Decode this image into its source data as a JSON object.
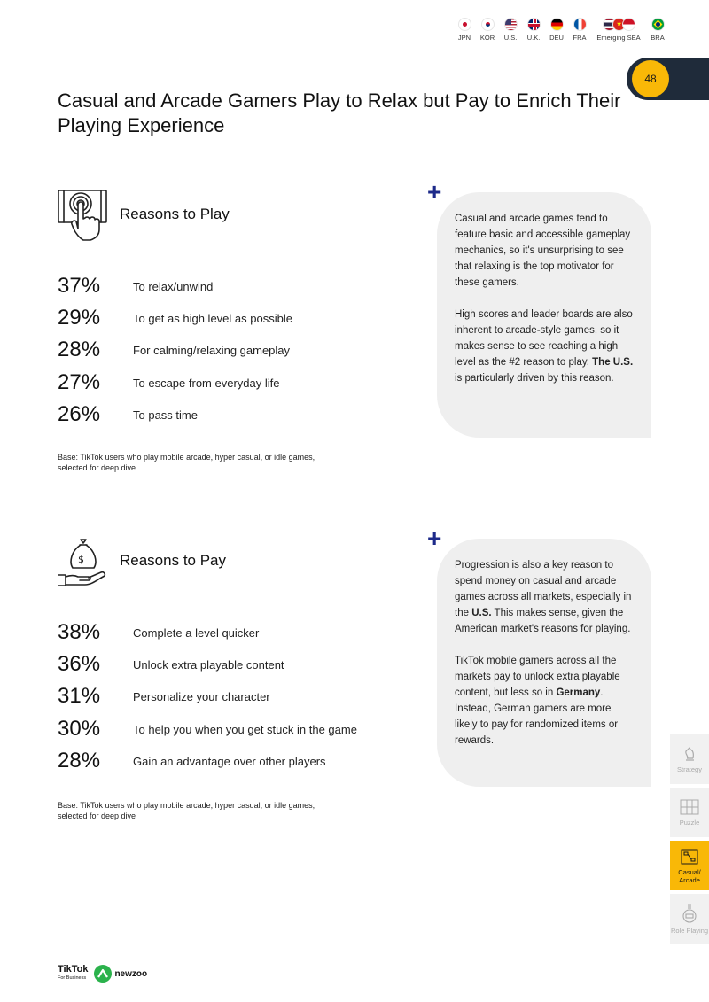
{
  "markets": [
    {
      "code": "JPN",
      "icon": "japan-flag-icon"
    },
    {
      "code": "KOR",
      "icon": "korea-flag-icon"
    },
    {
      "code": "U.S.",
      "icon": "us-flag-icon"
    },
    {
      "code": "U.K.",
      "icon": "uk-flag-icon"
    },
    {
      "code": "DEU",
      "icon": "germany-flag-icon"
    },
    {
      "code": "FRA",
      "icon": "france-flag-icon"
    },
    {
      "code": "Emerging SEA",
      "icon": "sea-flags-icon"
    },
    {
      "code": "BRA",
      "icon": "brazil-flag-icon"
    }
  ],
  "page_number": "48",
  "title": "Casual and Arcade Gamers Play to Relax but Pay to Enrich Their Playing Experience",
  "reasons_play": {
    "heading": "Reasons to Play",
    "icon": "touch-screen-icon",
    "items": [
      {
        "pct": "37%",
        "label": "To relax/unwind"
      },
      {
        "pct": "29%",
        "label": "To get as high level as possible"
      },
      {
        "pct": "28%",
        "label": "For calming/relaxing gameplay"
      },
      {
        "pct": "27%",
        "label": "To escape from everyday life"
      },
      {
        "pct": "26%",
        "label": "To pass time"
      }
    ],
    "base": "Base: TikTok users who play mobile arcade, hyper casual, or idle games, selected for deep dive",
    "insight": {
      "p1": "Casual and arcade games tend to feature basic and accessible gameplay mechanics, so it's unsurprising to see that relaxing is the top motivator for these gamers.",
      "p2_pre": "High scores and leader boards are also inherent to arcade-style games, so it makes sense to see reaching a high level as the #2 reason to play. ",
      "p2_bold": "The U.S.",
      "p2_post": " is particularly driven by this reason."
    }
  },
  "reasons_pay": {
    "heading": "Reasons to Pay",
    "icon": "money-bag-hand-icon",
    "items": [
      {
        "pct": "38%",
        "label": "Complete a level quicker"
      },
      {
        "pct": "36%",
        "label": "Unlock extra playable content"
      },
      {
        "pct": "31%",
        "label": "Personalize your character"
      },
      {
        "pct": "30%",
        "label": "To help you when you get stuck in the game"
      },
      {
        "pct": "28%",
        "label": "Gain an advantage over other players"
      }
    ],
    "base": "Base: TikTok users who play mobile arcade, hyper casual, or idle games, selected for deep dive",
    "insight": {
      "p1_pre": "Progression is also a key reason to spend money on casual and arcade games across all markets, especially in the ",
      "p1_bold": "U.S.",
      "p1_post": " This makes sense, given the American market's reasons for playing.",
      "p2_pre": "TikTok mobile gamers across all the markets pay to unlock extra playable content, but less so in ",
      "p2_bold": "Germany",
      "p2_post": ". Instead, German gamers are more likely to pay for randomized items or rewards."
    }
  },
  "side_nav": [
    {
      "label": "Strategy",
      "icon": "chess-knight-icon",
      "active": false
    },
    {
      "label": "Puzzle",
      "icon": "puzzle-grid-icon",
      "active": false
    },
    {
      "label": "Casual/ Arcade",
      "icon": "arcade-board-icon",
      "active": true
    },
    {
      "label": "Role Playing",
      "icon": "potion-flask-icon",
      "active": false
    }
  ],
  "footer": {
    "tiktok": "TikTok",
    "tiktok_sub": "For Business",
    "newzoo": "newzoo"
  },
  "colors": {
    "accent_yellow": "#f9b807",
    "navy": "#1f2b3a",
    "plus_blue": "#1d2a8a",
    "box_gray": "#efefef",
    "newzoo_green": "#2bb24c"
  }
}
